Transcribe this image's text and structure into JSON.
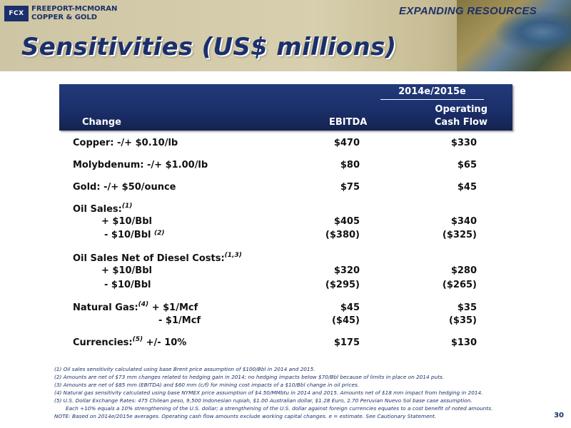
{
  "header": {
    "logo_mark": "FCX",
    "logo_line1": "FREEPORT-MCMORAN",
    "logo_line2": "COPPER & GOLD",
    "tagline": "EXPANDING RESOURCES",
    "title": "Sensitivities (US$ millions)",
    "colors": {
      "brand_blue": "#1b2f6b",
      "band": "#d2c9a8"
    }
  },
  "table": {
    "period": "2014e/2015e",
    "col_change": "Change",
    "col_ebitda": "EBITDA",
    "col_ocf_line1": "Operating",
    "col_ocf_line2": "Cash Flow",
    "rows": [
      {
        "label": "Copper: -/+ $0.10/lb",
        "ebitda": "$470",
        "ocf": "$330"
      },
      {
        "label": "Molybdenum: -/+ $1.00/lb",
        "ebitda": "$80",
        "ocf": "$65"
      },
      {
        "label": "Gold: -/+ $50/ounce",
        "ebitda": "$75",
        "ocf": "$45"
      },
      {
        "label": "Oil Sales:",
        "sup": "(1)"
      },
      {
        "label": "+ $10/Bbl",
        "ebitda": "$405",
        "ocf": "$340"
      },
      {
        "label": "- $10/Bbl",
        "sup": "(2)",
        "ebitda": "($380)",
        "ocf": "($325)"
      },
      {
        "label": "Oil Sales Net of Diesel Costs:",
        "sup": "(1,3)"
      },
      {
        "label": "+ $10/Bbl",
        "ebitda": "$320",
        "ocf": "$280"
      },
      {
        "label": "- $10/Bbl",
        "ebitda": "($295)",
        "ocf": "($265)"
      },
      {
        "label": "Natural Gas:",
        "sup": "(4)",
        "label_rest": " + $1/Mcf",
        "ebitda": "$45",
        "ocf": "$35"
      },
      {
        "label": "-  $1/Mcf",
        "ebitda": "($45)",
        "ocf": "($35)"
      },
      {
        "label": "Currencies:",
        "sup": "(5)",
        "label_rest": " +/- 10%",
        "ebitda": "$175",
        "ocf": "$130"
      }
    ]
  },
  "footnotes": [
    "(1) Oil sales sensitivity calculated using base Brent price assumption of $100/Bbl in 2014 and 2015.",
    "(2) Amounts are net of $73 mm changes related to hedging gain in 2014; no hedging impacts below $70/Bbl because of limits in place on 2014 puts.",
    "(3) Amounts are net of $85 mm (EBITDA) and $60 mm (c/f) for mining cost impacts of a $10/Bbl change in oil prices.",
    "(4) Natural gas sensitivity calculated using base NYMEX price assumption of $4.50/MMbtu in 2014 and 2015. Amounts net of $18 mm impact from hedging in 2014.",
    "(5) U.S. Dollar Exchange Rates: 475 Chilean peso, 9,500 Indonesian rupiah, $1.00 Australian dollar, $1.28 Euro, 2.70 Peruvian Nuevo Sol base case assumption.",
    "Each +10%  equals a 10% strengthening of the U.S. dollar; a strengthening of the U.S. dollar against foreign currencies equates to a cost benefit of noted amounts.",
    "NOTE: Based on 2014e/2015e averages. Operating cash flow amounts exclude working capital changes. e = estimate. See Cautionary Statement."
  ],
  "page_number": "30"
}
